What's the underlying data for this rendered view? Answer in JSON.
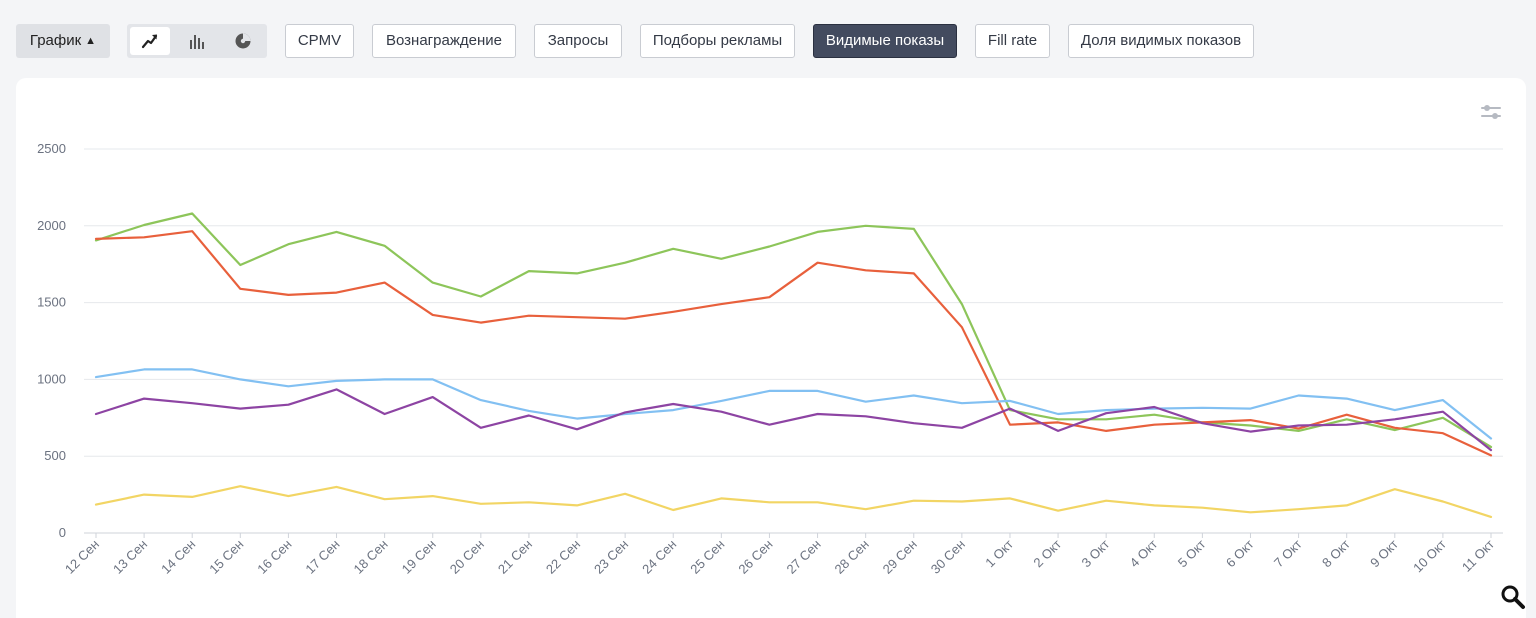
{
  "toolbar": {
    "chart_toggle_label": "График",
    "view_modes": [
      "line-chart-icon",
      "bar-chart-icon",
      "pie-chart-icon"
    ],
    "active_view": "line-chart-icon",
    "metrics": [
      "CPMV",
      "Вознаграждение",
      "Запросы",
      "Подборы рекламы",
      "Видимые показы",
      "Fill rate",
      "Доля видимых показов"
    ],
    "active_metric": "Видимые показы"
  },
  "colors": {
    "accent_active": "#434b5f",
    "green": "#8dc55a",
    "red": "#e8603c",
    "blue": "#82c0f2",
    "purple": "#8d44a3",
    "yellow": "#f2d564",
    "grid": "#e6e8ec",
    "tick": "#6b7280"
  },
  "icons": {
    "settings": "sliders-icon",
    "zoom": "magnifier-icon"
  },
  "chart_data": {
    "type": "line",
    "title": "",
    "xlabel": "",
    "ylabel": "",
    "ylim": [
      0,
      2500
    ],
    "y_ticks": [
      0,
      500,
      1000,
      1500,
      2000,
      2500
    ],
    "grid": true,
    "legend": "none",
    "categories": [
      "12 Сен",
      "13 Сен",
      "14 Сен",
      "15 Сен",
      "16 Сен",
      "17 Сен",
      "18 Сен",
      "19 Сен",
      "20 Сен",
      "21 Сен",
      "22 Сен",
      "23 Сен",
      "24 Сен",
      "25 Сен",
      "26 Сен",
      "27 Сен",
      "28 Сен",
      "29 Сен",
      "30 Сен",
      "1 Окт",
      "2 Окт",
      "3 Окт",
      "4 Окт",
      "5 Окт",
      "6 Окт",
      "7 Окт",
      "8 Окт",
      "9 Окт",
      "10 Окт",
      "11 Окт"
    ],
    "series": [
      {
        "color": "#8dc55a",
        "values": [
          1905,
          2005,
          2080,
          1745,
          1880,
          1960,
          1870,
          1630,
          1540,
          1705,
          1690,
          1760,
          1850,
          1785,
          1865,
          1960,
          2000,
          1980,
          1490,
          800,
          740,
          740,
          770,
          720,
          700,
          665,
          740,
          670,
          750,
          560
        ]
      },
      {
        "color": "#e8603c",
        "values": [
          1915,
          1925,
          1965,
          1590,
          1550,
          1565,
          1630,
          1420,
          1370,
          1415,
          1405,
          1395,
          1440,
          1490,
          1535,
          1760,
          1710,
          1690,
          1340,
          705,
          720,
          665,
          705,
          720,
          735,
          680,
          770,
          685,
          650,
          505
        ]
      },
      {
        "color": "#82c0f2",
        "values": [
          1015,
          1065,
          1065,
          1000,
          955,
          990,
          1000,
          1000,
          865,
          795,
          745,
          775,
          800,
          860,
          925,
          925,
          855,
          895,
          845,
          860,
          775,
          800,
          810,
          815,
          810,
          895,
          875,
          800,
          865,
          615
        ]
      },
      {
        "color": "#8d44a3",
        "values": [
          775,
          875,
          845,
          810,
          835,
          935,
          775,
          885,
          685,
          765,
          675,
          785,
          840,
          790,
          705,
          775,
          760,
          715,
          685,
          810,
          665,
          780,
          820,
          715,
          660,
          700,
          705,
          740,
          790,
          540
        ]
      },
      {
        "color": "#f2d564",
        "values": [
          185,
          250,
          235,
          305,
          240,
          300,
          220,
          240,
          190,
          200,
          180,
          255,
          150,
          225,
          200,
          200,
          155,
          210,
          205,
          225,
          145,
          210,
          180,
          165,
          135,
          155,
          180,
          285,
          205,
          105
        ]
      }
    ]
  }
}
